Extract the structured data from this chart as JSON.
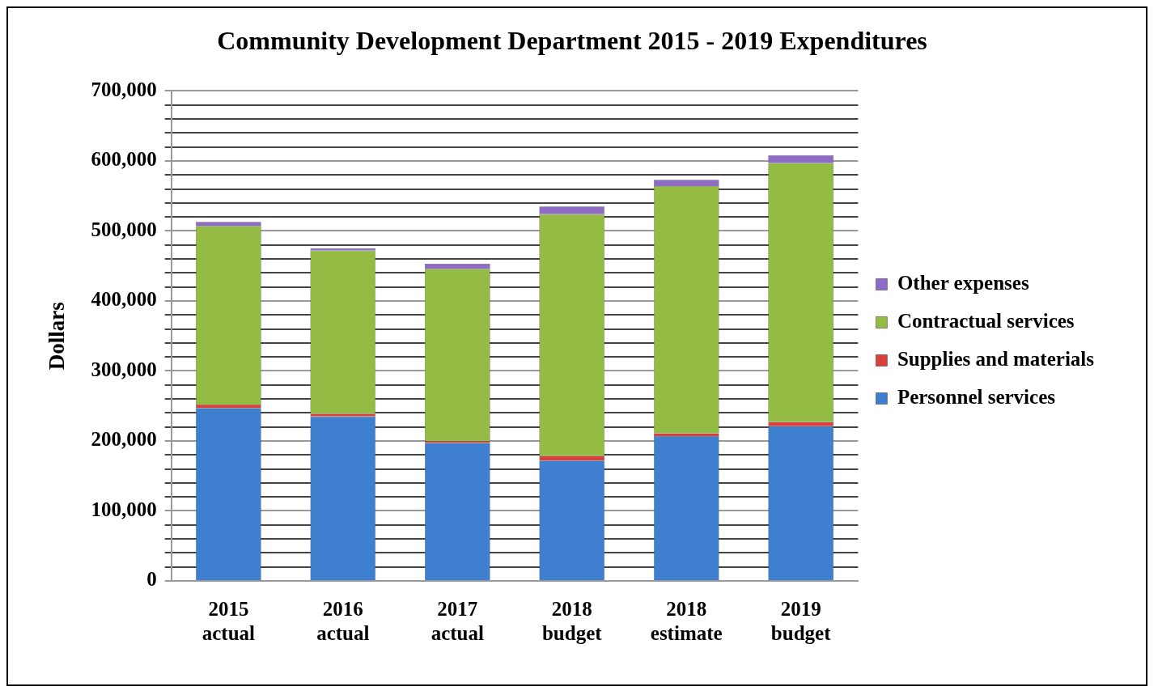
{
  "chart_data": {
    "type": "bar",
    "title": "Community Development Department 2015 - 2019 Expenditures",
    "ylabel": "Dollars",
    "categories": [
      "2015\nactual",
      "2016\nactual",
      "2017\nactual",
      "2018\nbudget",
      "2018\nestimate",
      "2019\nbudget"
    ],
    "stacked": true,
    "series": [
      {
        "name": "Personnel services",
        "color": "#3f7fcf",
        "values": [
          247000,
          235000,
          197000,
          172000,
          207000,
          221000
        ]
      },
      {
        "name": "Supplies and materials",
        "color": "#d9403a",
        "values": [
          5000,
          4000,
          3000,
          7000,
          4000,
          6000
        ]
      },
      {
        "name": "Contractual services",
        "color": "#94bb44",
        "values": [
          255000,
          233000,
          246000,
          345000,
          353000,
          370000
        ]
      },
      {
        "name": "Other expenses",
        "color": "#8e6bc4",
        "values": [
          6000,
          3000,
          7000,
          11000,
          9000,
          11000
        ]
      }
    ],
    "ylim": [
      0,
      700000
    ],
    "yticks": [
      0,
      {
        "value": 20000,
        "label": null
      },
      {
        "value": 40000,
        "label": null
      },
      {
        "value": 60000,
        "label": null
      },
      {
        "value": 80000,
        "label": null
      },
      {
        "value": 100000,
        "label": "100,000"
      },
      {
        "value": 120000,
        "label": null
      },
      {
        "value": 140000,
        "label": null
      },
      {
        "value": 160000,
        "label": null
      },
      {
        "value": 180000,
        "label": null
      },
      {
        "value": 200000,
        "label": "200,000"
      },
      {
        "value": 220000,
        "label": null
      },
      {
        "value": 240000,
        "label": null
      },
      {
        "value": 260000,
        "label": null
      },
      {
        "value": 280000,
        "label": null
      },
      {
        "value": 300000,
        "label": "300,000"
      },
      {
        "value": 320000,
        "label": null
      },
      {
        "value": 340000,
        "label": null
      },
      {
        "value": 360000,
        "label": null
      },
      {
        "value": 380000,
        "label": null
      },
      {
        "value": 400000,
        "label": "400,000"
      },
      {
        "value": 420000,
        "label": null
      },
      {
        "value": 440000,
        "label": null
      },
      {
        "value": 460000,
        "label": null
      },
      {
        "value": 480000,
        "label": null
      },
      {
        "value": 500000,
        "label": "500,000"
      },
      {
        "value": 520000,
        "label": null
      },
      {
        "value": 540000,
        "label": null
      },
      {
        "value": 560000,
        "label": null
      },
      {
        "value": 580000,
        "label": null
      },
      {
        "value": 600000,
        "label": "600,000"
      },
      {
        "value": 620000,
        "label": null
      },
      {
        "value": 640000,
        "label": null
      },
      {
        "value": 660000,
        "label": null
      },
      {
        "value": 680000,
        "label": null
      },
      {
        "value": 700000,
        "label": "700,000"
      }
    ],
    "grid": "y",
    "legend": "right"
  }
}
